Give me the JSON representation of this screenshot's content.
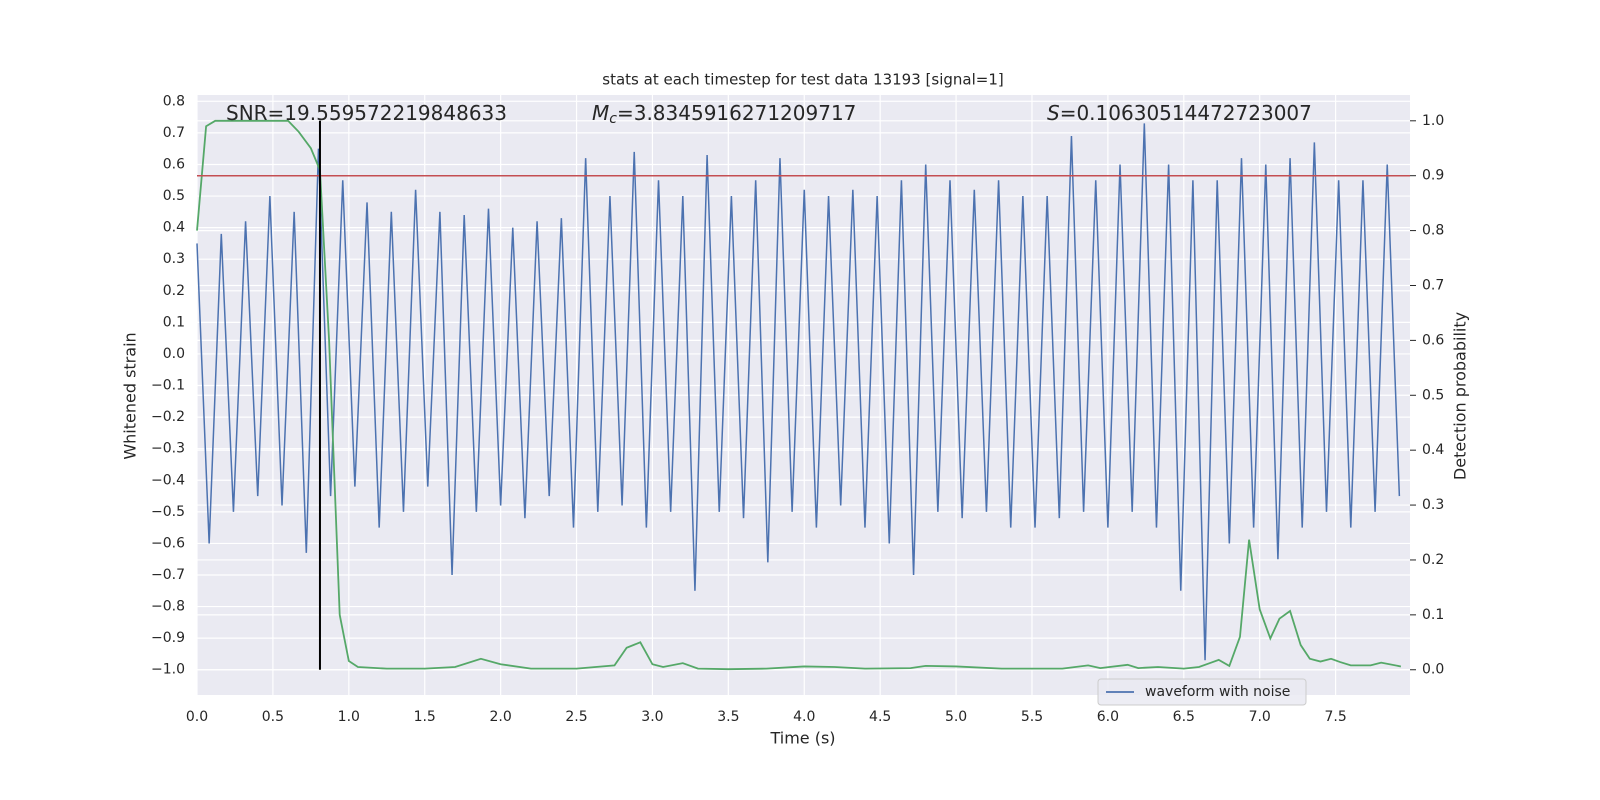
{
  "chart_data": {
    "type": "line",
    "title": "stats at each timestep for test data 13193 [signal=1]",
    "x_label": "Time (s)",
    "y_label": "Whitened strain",
    "y2_label": "Detection probability",
    "xlim": [
      0,
      7.99
    ],
    "ylim": [
      -1.08,
      0.82
    ],
    "y2lim": [
      -0.046,
      1.047
    ],
    "xticks": [
      {
        "value": 0,
        "label": "0.0"
      },
      {
        "value": 0.5,
        "label": "0.5"
      },
      {
        "value": 1,
        "label": "1.0"
      },
      {
        "value": 1.5,
        "label": "1.5"
      },
      {
        "value": 2,
        "label": "2.0"
      },
      {
        "value": 2.5,
        "label": "2.5"
      },
      {
        "value": 3,
        "label": "3.0"
      },
      {
        "value": 3.5,
        "label": "3.5"
      },
      {
        "value": 4,
        "label": "4.0"
      },
      {
        "value": 4.5,
        "label": "4.5"
      },
      {
        "value": 5,
        "label": "5.0"
      },
      {
        "value": 5.5,
        "label": "5.5"
      },
      {
        "value": 6,
        "label": "6.0"
      },
      {
        "value": 6.5,
        "label": "6.5"
      },
      {
        "value": 7,
        "label": "7.0"
      },
      {
        "value": 7.5,
        "label": "7.5"
      }
    ],
    "yticks": [
      {
        "value": 0.8,
        "label": "0.8"
      },
      {
        "value": 0.7,
        "label": "0.7"
      },
      {
        "value": 0.6,
        "label": "0.6"
      },
      {
        "value": 0.5,
        "label": "0.5"
      },
      {
        "value": 0.4,
        "label": "0.4"
      },
      {
        "value": 0.3,
        "label": "0.3"
      },
      {
        "value": 0.2,
        "label": "0.2"
      },
      {
        "value": 0.1,
        "label": "0.1"
      },
      {
        "value": 0,
        "label": "0.0"
      },
      {
        "value": -0.1,
        "label": "−0.1"
      },
      {
        "value": -0.2,
        "label": "−0.2"
      },
      {
        "value": -0.3,
        "label": "−0.3"
      },
      {
        "value": -0.4,
        "label": "−0.4"
      },
      {
        "value": -0.5,
        "label": "−0.5"
      },
      {
        "value": -0.6,
        "label": "−0.6"
      },
      {
        "value": -0.7,
        "label": "−0.7"
      },
      {
        "value": -0.8,
        "label": "−0.8"
      },
      {
        "value": -0.9,
        "label": "−0.9"
      },
      {
        "value": -1,
        "label": "−1.0"
      }
    ],
    "y2ticks": [
      {
        "value": 0,
        "label": "0.0"
      },
      {
        "value": 0.1,
        "label": "0.1"
      },
      {
        "value": 0.2,
        "label": "0.2"
      },
      {
        "value": 0.3,
        "label": "0.3"
      },
      {
        "value": 0.4,
        "label": "0.4"
      },
      {
        "value": 0.5,
        "label": "0.5"
      },
      {
        "value": 0.6,
        "label": "0.6"
      },
      {
        "value": 0.7,
        "label": "0.7"
      },
      {
        "value": 0.8,
        "label": "0.8"
      },
      {
        "value": 0.9,
        "label": "0.9"
      },
      {
        "value": 1,
        "label": "1.0"
      }
    ],
    "grid": true,
    "legend": "lower right",
    "series": [
      {
        "name": "waveform with noise",
        "color": "#4c72b0",
        "x": [
          0,
          0.08,
          0.16,
          0.24,
          0.32,
          0.4,
          0.48,
          0.56,
          0.64,
          0.72,
          0.8,
          0.88,
          0.96,
          1.04,
          1.12,
          1.2,
          1.28,
          1.36,
          1.44,
          1.52,
          1.6,
          1.68,
          1.76,
          1.84,
          1.92,
          2,
          2.08,
          2.16,
          2.24,
          2.32,
          2.4,
          2.48,
          2.56,
          2.64,
          2.72,
          2.8,
          2.88,
          2.96,
          3.04,
          3.12,
          3.2,
          3.28,
          3.36,
          3.44,
          3.52,
          3.6,
          3.68,
          3.76,
          3.84,
          3.92,
          4,
          4.08,
          4.16,
          4.24,
          4.32,
          4.4,
          4.48,
          4.56,
          4.64,
          4.72,
          4.8,
          4.88,
          4.96,
          5.04,
          5.12,
          5.2,
          5.28,
          5.36,
          5.44,
          5.52,
          5.6,
          5.68,
          5.76,
          5.84,
          5.92,
          6,
          6.08,
          6.16,
          6.24,
          6.32,
          6.4,
          6.48,
          6.56,
          6.64,
          6.72,
          6.8,
          6.88,
          6.96,
          7.04,
          7.12,
          7.2,
          7.28,
          7.36,
          7.44,
          7.52,
          7.6,
          7.68,
          7.76,
          7.84,
          7.92
        ],
        "values": [
          0.35,
          -0.6,
          0.38,
          -0.5,
          0.42,
          -0.45,
          0.5,
          -0.48,
          0.45,
          -0.63,
          0.65,
          -0.45,
          0.55,
          -0.42,
          0.48,
          -0.55,
          0.45,
          -0.5,
          0.52,
          -0.42,
          0.45,
          -0.7,
          0.44,
          -0.5,
          0.46,
          -0.48,
          0.4,
          -0.52,
          0.42,
          -0.45,
          0.43,
          -0.55,
          0.62,
          -0.5,
          0.5,
          -0.48,
          0.64,
          -0.55,
          0.55,
          -0.5,
          0.5,
          -0.75,
          0.63,
          -0.5,
          0.5,
          -0.52,
          0.55,
          -0.66,
          0.62,
          -0.5,
          0.52,
          -0.55,
          0.5,
          -0.48,
          0.52,
          -0.55,
          0.5,
          -0.6,
          0.55,
          -0.7,
          0.6,
          -0.5,
          0.55,
          -0.52,
          0.52,
          -0.5,
          0.55,
          -0.55,
          0.5,
          -0.55,
          0.5,
          -0.52,
          0.69,
          -0.5,
          0.55,
          -0.55,
          0.6,
          -0.5,
          0.73,
          -0.55,
          0.6,
          -0.75,
          0.55,
          -0.97,
          0.55,
          -0.6,
          0.62,
          -0.55,
          0.6,
          -0.65,
          0.62,
          -0.55,
          0.67,
          -0.5,
          0.55,
          -0.55,
          0.55,
          -0.5,
          0.6,
          -0.45
        ]
      },
      {
        "color": "#55a868",
        "axis": "y2",
        "x": [
          0,
          0.06,
          0.12,
          0.6,
          0.67,
          0.75,
          0.81,
          0.87,
          0.94,
          1,
          1.06,
          1.25,
          1.5,
          1.7,
          1.87,
          2,
          2.2,
          2.5,
          2.75,
          2.83,
          2.92,
          3,
          3.07,
          3.2,
          3.3,
          3.5,
          3.75,
          4,
          4.2,
          4.4,
          4.7,
          4.8,
          5,
          5.3,
          5.7,
          5.87,
          5.95,
          6.13,
          6.2,
          6.33,
          6.5,
          6.6,
          6.67,
          6.73,
          6.8,
          6.87,
          6.93,
          7,
          7.07,
          7.13,
          7.2,
          7.27,
          7.33,
          7.4,
          7.47,
          7.53,
          7.6,
          7.73,
          7.8,
          7.93
        ],
        "values": [
          0.8,
          0.99,
          1,
          1,
          0.98,
          0.95,
          0.91,
          0.6,
          0.1,
          0.016,
          0.005,
          0.002,
          0.002,
          0.005,
          0.02,
          0.01,
          0.002,
          0.002,
          0.008,
          0.04,
          0.05,
          0.01,
          0.005,
          0.012,
          0.002,
          0.001,
          0.002,
          0.006,
          0.005,
          0.002,
          0.003,
          0.007,
          0.006,
          0.002,
          0.002,
          0.008,
          0.003,
          0.009,
          0.003,
          0.005,
          0.002,
          0.005,
          0.012,
          0.018,
          0.007,
          0.06,
          0.237,
          0.11,
          0.057,
          0.093,
          0.107,
          0.045,
          0.02,
          0.015,
          0.02,
          0.014,
          0.008,
          0.008,
          0.013,
          0.006
        ]
      }
    ],
    "threshold": {
      "y2": 0.9,
      "color": "#c44e52"
    },
    "marker_line": {
      "x": 0.81,
      "y2_from": 0,
      "y2_to": 1,
      "color": "#000000"
    },
    "annotations": [
      {
        "text": "SNR=19.559572219848633"
      },
      {
        "symbol": "M",
        "subscript": "c",
        "text": "=3.8345916271209717"
      },
      {
        "symbol": "S",
        "text": "=0.10630514472723007"
      }
    ]
  }
}
